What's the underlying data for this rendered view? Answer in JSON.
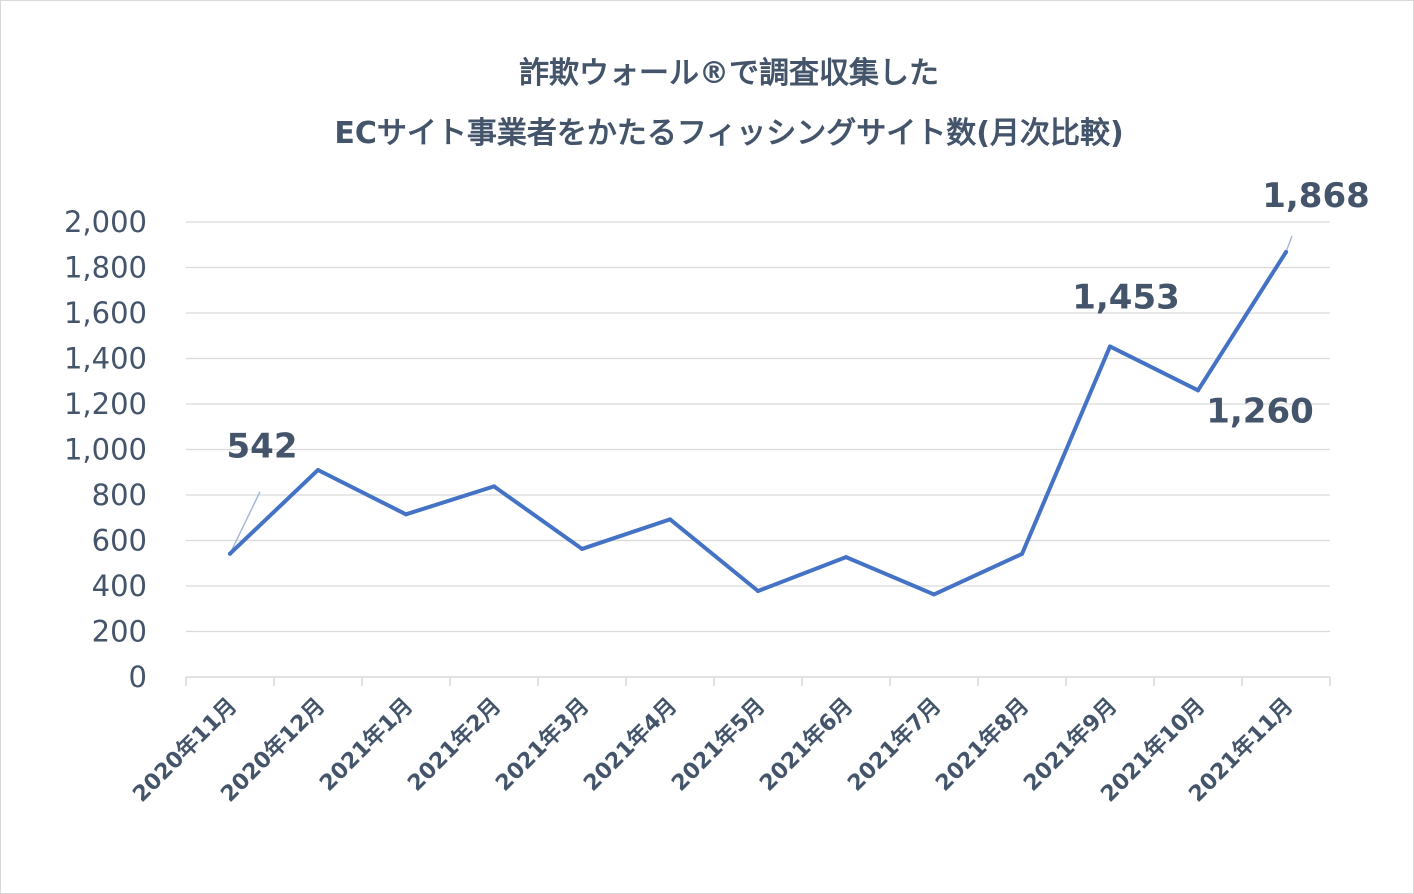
{
  "chart_data": {
    "type": "line",
    "title": "詐欺ウォール®で調査収集した",
    "subtitle": "ECサイト事業者をかたるフィッシングサイト数(月次比較)",
    "xlabel": "",
    "ylabel": "",
    "categories": [
      "2020年11月",
      "2020年12月",
      "2021年1月",
      "2021年2月",
      "2021年3月",
      "2021年4月",
      "2021年5月",
      "2021年6月",
      "2021年7月",
      "2021年8月",
      "2021年9月",
      "2021年10月",
      "2021年11月"
    ],
    "series": [
      {
        "name": "",
        "color": "#4472c4",
        "values": [
          542,
          910,
          715,
          838,
          563,
          693,
          378,
          527,
          363,
          541,
          1453,
          1260,
          1868
        ]
      }
    ],
    "ylim": [
      0,
      2000
    ],
    "yticks": [
      "0",
      "200",
      "400",
      "600",
      "800",
      "1,000",
      "1,200",
      "1,400",
      "1,600",
      "1,800",
      "2,000"
    ],
    "data_labels": [
      {
        "index": 0,
        "text": "542"
      },
      {
        "index": 10,
        "text": "1,453"
      },
      {
        "index": 11,
        "text": "1,260"
      },
      {
        "index": 12,
        "text": "1,868"
      }
    ],
    "grid": true,
    "legend": "none"
  }
}
